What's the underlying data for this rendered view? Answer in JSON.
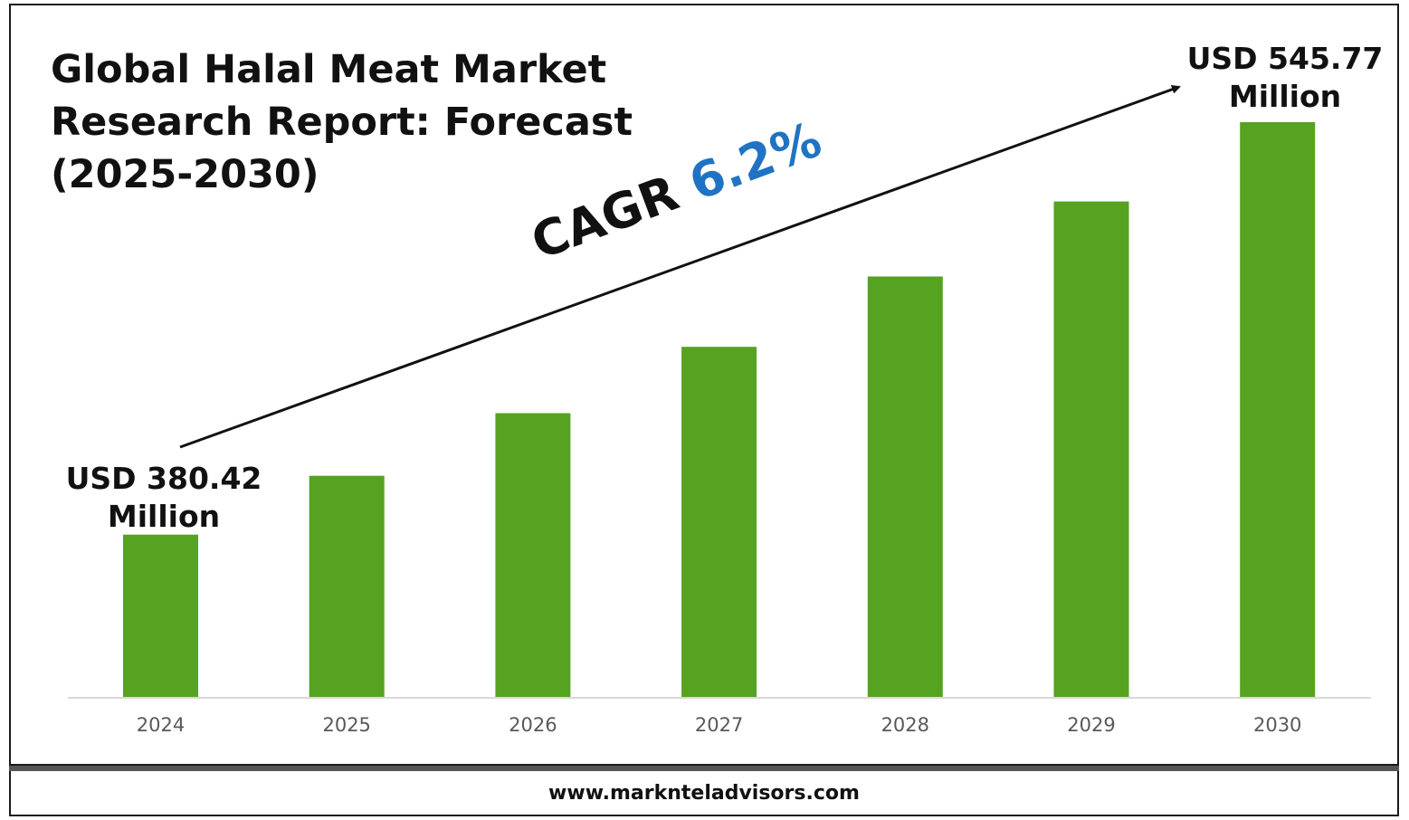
{
  "title": "Global Halal Meat Market Research Report: Forecast (2025-2030)",
  "start_label": {
    "line1": "USD 380.42",
    "line2": "Million"
  },
  "end_label": {
    "line1": "USD 545.77",
    "line2": "Million"
  },
  "cagr": {
    "label": "CAGR",
    "value": "6.2%"
  },
  "footer": {
    "url": "www.marknteladvisors.com"
  },
  "colors": {
    "bar": "#56a221",
    "cagr_value": "#1f73c2",
    "axis": "#d9d9d9"
  },
  "chart_data": {
    "type": "bar",
    "title": "Global Halal Meat Market Research Report: Forecast (2025-2030)",
    "categories": [
      "2024",
      "2025",
      "2026",
      "2027",
      "2028",
      "2029",
      "2030"
    ],
    "values": [
      380.42,
      404.0,
      429.1,
      455.7,
      483.9,
      514.0,
      545.77
    ],
    "unit": "USD Million",
    "annotations": [
      "USD 380.42 Million",
      "USD 545.77 Million",
      "CAGR 6.2%"
    ],
    "xlabel": "",
    "ylabel": "",
    "grid": false,
    "legend": "none"
  }
}
